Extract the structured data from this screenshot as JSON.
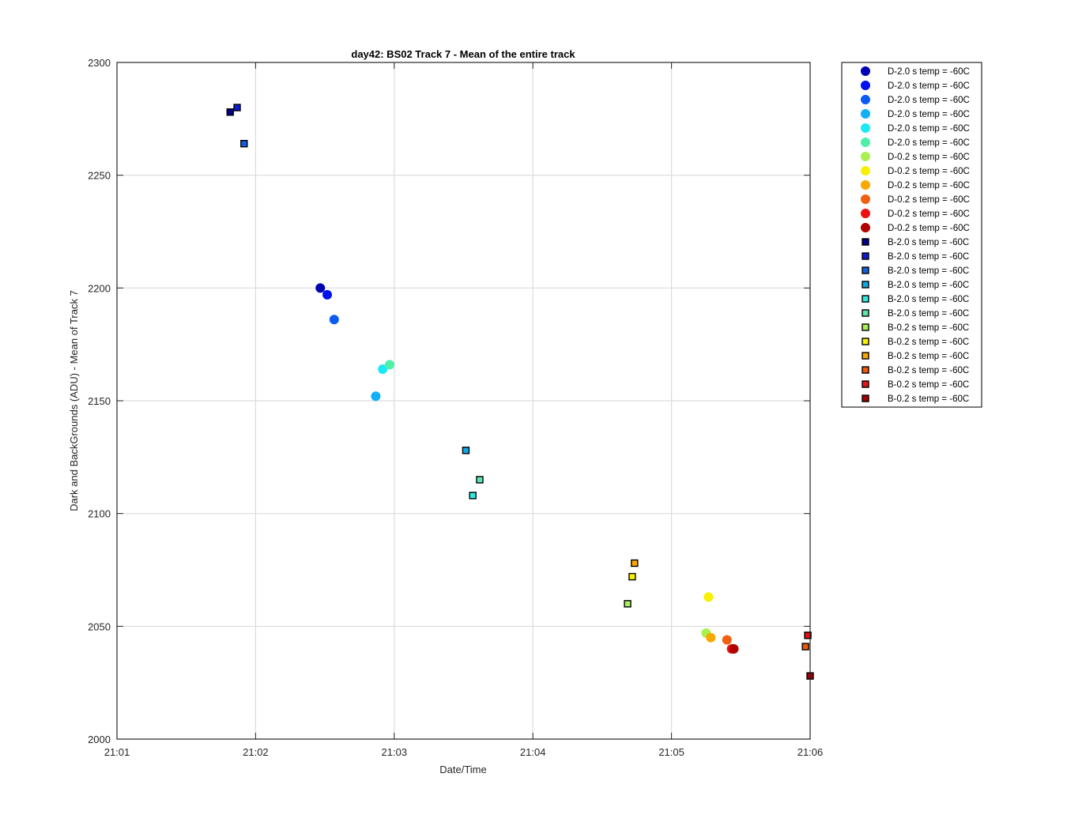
{
  "chart_data": {
    "type": "scatter",
    "title": "day42: BS02  Track 7 - Mean of the entire track",
    "xlabel": "Date/Time",
    "ylabel": "Dark and BackGrounds (ADU) - Mean of Track 7",
    "xlim": [
      "21:01",
      "21:06"
    ],
    "ylim": [
      2000,
      2300
    ],
    "x_ticks": [
      "21:01",
      "21:02",
      "21:03",
      "21:04",
      "21:05",
      "21:06"
    ],
    "y_ticks": [
      2000,
      2050,
      2100,
      2150,
      2200,
      2250,
      2300
    ],
    "grid": true,
    "legend_position": "outside-right",
    "series": [
      {
        "name": "D-2.0 s temp = -60C",
        "marker": "circle",
        "color": "#0000b4",
        "points": [
          {
            "x": "21:02:28",
            "y": 2200
          }
        ]
      },
      {
        "name": "D-2.0 s temp = -60C",
        "marker": "circle",
        "color": "#0010f0",
        "points": [
          {
            "x": "21:02:31",
            "y": 2197
          }
        ]
      },
      {
        "name": "D-2.0 s temp = -60C",
        "marker": "circle",
        "color": "#0c5cf2",
        "points": [
          {
            "x": "21:02:34",
            "y": 2186
          }
        ]
      },
      {
        "name": "D-2.0 s temp = -60C",
        "marker": "circle",
        "color": "#10b0f6",
        "points": [
          {
            "x": "21:02:52",
            "y": 2152
          }
        ]
      },
      {
        "name": "D-2.0 s temp = -60C",
        "marker": "circle",
        "color": "#1ce8f6",
        "points": [
          {
            "x": "21:02:55",
            "y": 2164
          }
        ]
      },
      {
        "name": "D-2.0 s temp = -60C",
        "marker": "circle",
        "color": "#4ef0a8",
        "points": [
          {
            "x": "21:02:58",
            "y": 2166
          }
        ]
      },
      {
        "name": "D-0.2 s temp = -60C",
        "marker": "circle",
        "color": "#a8f050",
        "points": [
          {
            "x": "21:05:15",
            "y": 2047
          }
        ]
      },
      {
        "name": "D-0.2 s temp = -60C",
        "marker": "circle",
        "color": "#f8f000",
        "points": [
          {
            "x": "21:05:16",
            "y": 2063
          }
        ]
      },
      {
        "name": "D-0.2 s temp = -60C",
        "marker": "circle",
        "color": "#f8a800",
        "points": [
          {
            "x": "21:05:17",
            "y": 2045
          }
        ]
      },
      {
        "name": "D-0.2 s temp = -60C",
        "marker": "circle",
        "color": "#f06010",
        "points": [
          {
            "x": "21:05:24",
            "y": 2044
          }
        ]
      },
      {
        "name": "D-0.2 s temp = -60C",
        "marker": "circle",
        "color": "#f01010",
        "points": [
          {
            "x": "21:05:26",
            "y": 2040
          }
        ]
      },
      {
        "name": "D-0.2 s temp = -60C",
        "marker": "circle",
        "color": "#b00000",
        "points": [
          {
            "x": "21:05:27",
            "y": 2040
          }
        ]
      },
      {
        "name": "B-2.0 s temp = -60C",
        "marker": "square",
        "color": "#00008c",
        "points": [
          {
            "x": "21:01:49",
            "y": 2278
          }
        ]
      },
      {
        "name": "B-2.0 s temp = -60C",
        "marker": "square",
        "color": "#0a1cd8",
        "points": [
          {
            "x": "21:01:52",
            "y": 2280
          }
        ]
      },
      {
        "name": "B-2.0 s temp = -60C",
        "marker": "square",
        "color": "#1060e0",
        "points": [
          {
            "x": "21:01:55",
            "y": 2264
          }
        ]
      },
      {
        "name": "B-2.0 s temp = -60C",
        "marker": "square",
        "color": "#10a8e8",
        "points": [
          {
            "x": "21:03:31",
            "y": 2128
          }
        ]
      },
      {
        "name": "B-2.0 s temp = -60C",
        "marker": "square",
        "color": "#30e8e0",
        "points": [
          {
            "x": "21:03:34",
            "y": 2108
          }
        ]
      },
      {
        "name": "B-2.0 s temp = -60C",
        "marker": "square",
        "color": "#58e8a8",
        "points": [
          {
            "x": "21:03:37",
            "y": 2115
          }
        ]
      },
      {
        "name": "B-0.2 s temp = -60C",
        "marker": "square",
        "color": "#a8f058",
        "points": [
          {
            "x": "21:04:41",
            "y": 2060
          }
        ]
      },
      {
        "name": "B-0.2 s temp = -60C",
        "marker": "square",
        "color": "#f8f000",
        "points": [
          {
            "x": "21:04:43",
            "y": 2072
          }
        ]
      },
      {
        "name": "B-0.2 s temp = -60C",
        "marker": "square",
        "color": "#f8a800",
        "points": [
          {
            "x": "21:04:44",
            "y": 2078
          }
        ]
      },
      {
        "name": "B-0.2 s temp = -60C",
        "marker": "square",
        "color": "#f05808",
        "points": [
          {
            "x": "21:05:58",
            "y": 2041
          }
        ]
      },
      {
        "name": "B-0.2 s temp = -60C",
        "marker": "square",
        "color": "#e81010",
        "points": [
          {
            "x": "21:05:59",
            "y": 2046
          }
        ]
      },
      {
        "name": "B-0.2 s temp = -60C",
        "marker": "square",
        "color": "#a80000",
        "points": [
          {
            "x": "21:06:00",
            "y": 2028
          }
        ]
      }
    ]
  }
}
